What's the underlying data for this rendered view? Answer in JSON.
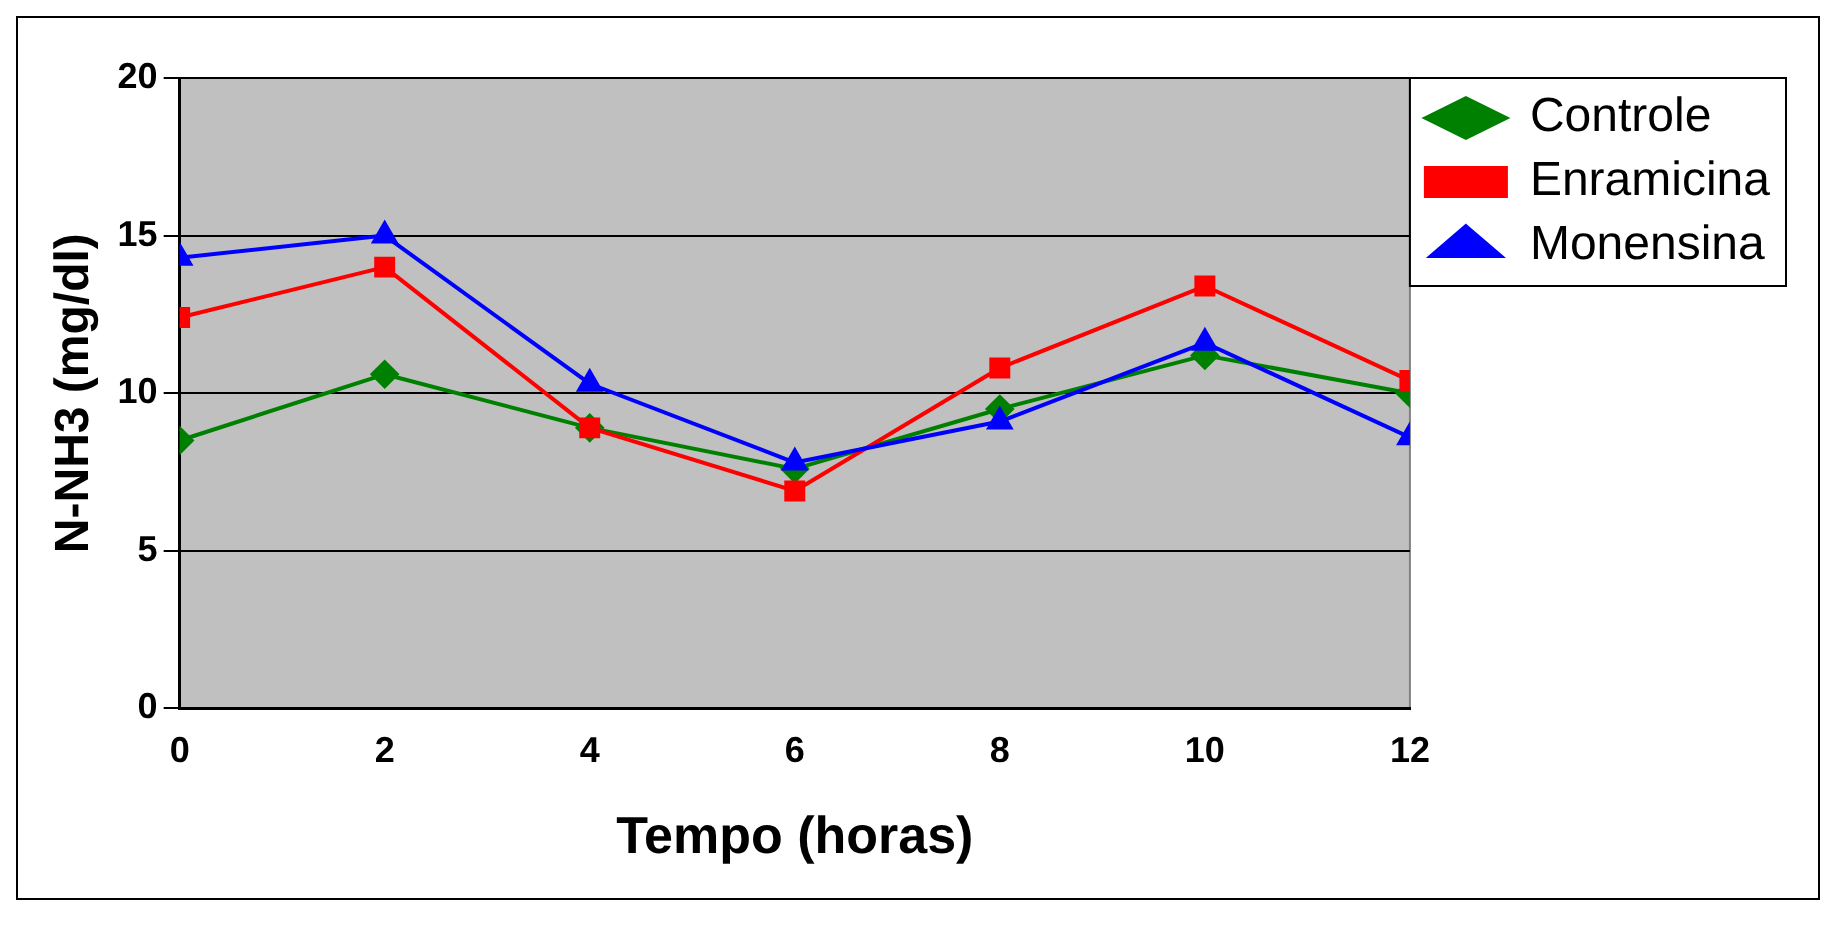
{
  "chart_data": {
    "type": "line",
    "xlabel": "Tempo (horas)",
    "ylabel": "N-NH3 (mg/dl)",
    "x": [
      0,
      2,
      4,
      6,
      8,
      10,
      12
    ],
    "xlim": [
      0,
      12
    ],
    "xticks": [
      0,
      2,
      4,
      6,
      8,
      10,
      12
    ],
    "ylim": [
      0,
      20
    ],
    "yticks": [
      0,
      5,
      10,
      15,
      20
    ],
    "grid": "y",
    "legend": "right",
    "line_style": "solid",
    "series": [
      {
        "name": "Controle",
        "color": "#008000",
        "marker": "diamond",
        "values": [
          8.5,
          10.6,
          8.9,
          7.6,
          9.5,
          11.2,
          10.0
        ]
      },
      {
        "name": "Enramicina",
        "color": "#ff0000",
        "marker": "square",
        "values": [
          12.4,
          14.0,
          8.9,
          6.9,
          10.8,
          13.4,
          10.4
        ]
      },
      {
        "name": "Monensina",
        "color": "#0000ff",
        "marker": "triangle",
        "values": [
          14.3,
          15.0,
          10.3,
          7.8,
          9.1,
          11.6,
          8.6
        ]
      }
    ]
  }
}
